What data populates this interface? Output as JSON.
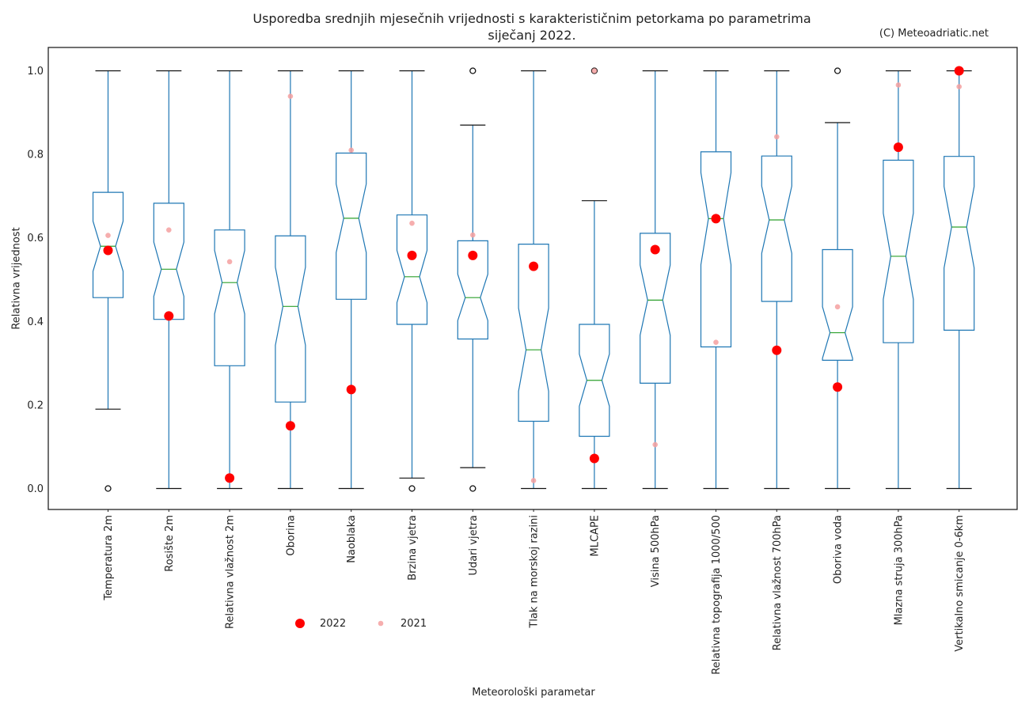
{
  "title_line1": "Usporedba srednjih mjesečnih vrijednosti s karakterističnim petorkama po parametrima",
  "title_line2": "siječanj 2022.",
  "credit": "(C) Meteoadriatic.net",
  "colors": {
    "box": "#1f77b4",
    "median": "#2ca02c",
    "y2022": "#ff0000",
    "y2021": "#f4a0a0"
  },
  "chart_data": {
    "type": "boxplot",
    "notched": true,
    "title": "Usporedba srednjih mjesečnih vrijednosti s karakterističnim petorkama po parametrima siječanj 2022.",
    "xlabel": "Meteorološki parametar",
    "ylabel": "Relativna vrijednost",
    "ylim": [
      -0.05,
      1.05
    ],
    "yticks": [
      "0.0",
      "0.2",
      "0.4",
      "0.6",
      "0.8",
      "1.0"
    ],
    "grid": false,
    "legend": {
      "position": "lower-center",
      "entries": [
        "2022",
        "2021"
      ]
    },
    "categories": [
      "Temperatura 2m",
      "Rosište 2m",
      "Relativna vlažnost 2m",
      "Oborina",
      "Naoblaka",
      "Brzina vjetra",
      "Udari vjetra",
      "Tlak na morskoj razini",
      "MLCAPE",
      "Visina 500hPa",
      "Relativna topografija 1000/500",
      "Relativna vlažnost 700hPa",
      "Oboriva voda",
      "Mlazna struja 300hPa",
      "Vertikalno smicanje 0-6km"
    ],
    "boxes": [
      {
        "whislo": 0.19,
        "q1": 0.457,
        "med": 0.58,
        "q3": 0.709,
        "whishi": 1.0,
        "notch": [
          0.52,
          0.64
        ],
        "fliers": [
          0.0
        ]
      },
      {
        "whislo": 0.0,
        "q1": 0.405,
        "med": 0.525,
        "q3": 0.683,
        "whishi": 1.0,
        "notch": [
          0.46,
          0.59
        ],
        "fliers": []
      },
      {
        "whislo": 0.0,
        "q1": 0.294,
        "med": 0.493,
        "q3": 0.619,
        "whishi": 1.0,
        "notch": [
          0.418,
          0.57
        ],
        "fliers": []
      },
      {
        "whislo": 0.0,
        "q1": 0.207,
        "med": 0.436,
        "q3": 0.605,
        "whishi": 1.0,
        "notch": [
          0.343,
          0.53
        ],
        "fliers": []
      },
      {
        "whislo": 0.0,
        "q1": 0.453,
        "med": 0.647,
        "q3": 0.803,
        "whishi": 1.0,
        "notch": [
          0.565,
          0.729
        ],
        "fliers": []
      },
      {
        "whislo": 0.025,
        "q1": 0.393,
        "med": 0.507,
        "q3": 0.655,
        "whishi": 1.0,
        "notch": [
          0.445,
          0.57
        ],
        "fliers": [
          0.0
        ]
      },
      {
        "whislo": 0.05,
        "q1": 0.358,
        "med": 0.457,
        "q3": 0.593,
        "whishi": 0.87,
        "notch": [
          0.402,
          0.513
        ],
        "fliers": [
          0.0,
          1.0
        ]
      },
      {
        "whislo": 0.0,
        "q1": 0.161,
        "med": 0.332,
        "q3": 0.585,
        "whishi": 1.0,
        "notch": [
          0.233,
          0.432
        ],
        "fliers": []
      },
      {
        "whislo": 0.0,
        "q1": 0.125,
        "med": 0.259,
        "q3": 0.393,
        "whishi": 0.689,
        "notch": [
          0.197,
          0.322
        ],
        "fliers": [
          1.0
        ]
      },
      {
        "whislo": 0.0,
        "q1": 0.252,
        "med": 0.451,
        "q3": 0.611,
        "whishi": 1.0,
        "notch": [
          0.367,
          0.535
        ],
        "fliers": []
      },
      {
        "whislo": 0.0,
        "q1": 0.339,
        "med": 0.646,
        "q3": 0.806,
        "whishi": 1.0,
        "notch": [
          0.536,
          0.756
        ],
        "fliers": []
      },
      {
        "whislo": 0.0,
        "q1": 0.448,
        "med": 0.643,
        "q3": 0.796,
        "whishi": 1.0,
        "notch": [
          0.563,
          0.724
        ],
        "fliers": []
      },
      {
        "whislo": 0.0,
        "q1": 0.307,
        "med": 0.373,
        "q3": 0.572,
        "whishi": 0.876,
        "notch": [
          0.312,
          0.435
        ],
        "fliers": [
          1.0
        ]
      },
      {
        "whislo": 0.0,
        "q1": 0.349,
        "med": 0.556,
        "q3": 0.786,
        "whishi": 1.0,
        "notch": [
          0.453,
          0.659
        ],
        "fliers": []
      },
      {
        "whislo": 0.0,
        "q1": 0.379,
        "med": 0.626,
        "q3": 0.795,
        "whishi": 1.0,
        "notch": [
          0.528,
          0.723
        ],
        "fliers": []
      }
    ],
    "series": [
      {
        "name": "2022",
        "values": [
          0.57,
          0.413,
          0.025,
          0.15,
          0.237,
          0.558,
          0.558,
          0.532,
          0.072,
          0.572,
          0.646,
          0.331,
          0.243,
          0.817,
          1.0
        ]
      },
      {
        "name": "2021",
        "values": [
          0.606,
          0.619,
          0.543,
          0.939,
          0.81,
          0.635,
          0.607,
          0.019,
          1.0,
          0.105,
          0.35,
          0.842,
          0.435,
          0.966,
          0.962
        ]
      }
    ]
  }
}
